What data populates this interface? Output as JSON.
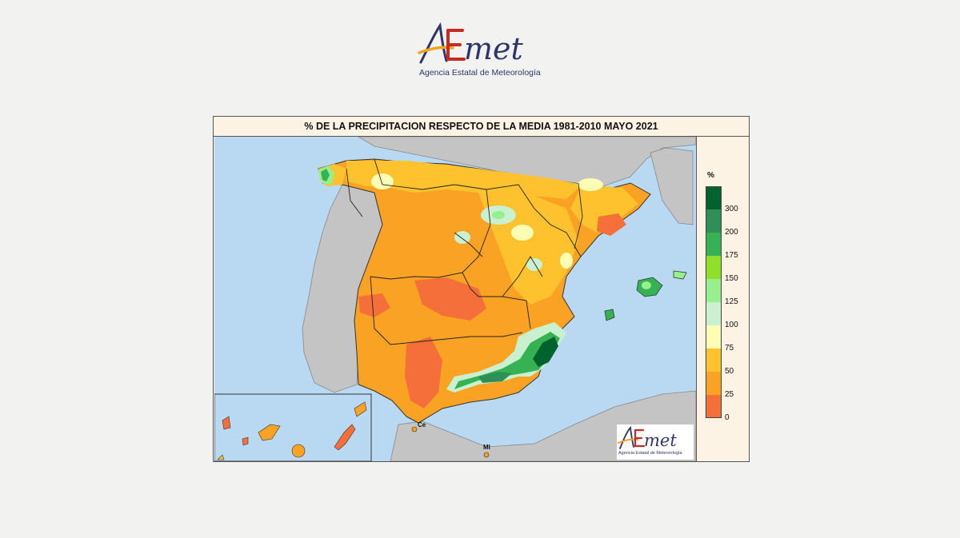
{
  "header": {
    "logo_text": "AEmet",
    "tagline": "Agencia Estatal de Meteorología"
  },
  "map": {
    "title": "% DE LA PRECIPITACION RESPECTO DE LA MEDIA 1981-2010 MAYO 2021",
    "place_labels": {
      "ceuta": "Ce",
      "melilla": "Ml"
    },
    "watermark_logo": "AEmet",
    "watermark_tagline": "Agencia Estatal de Meteorología"
  },
  "legend": {
    "unit": "%",
    "classes": [
      {
        "color": "#00622d",
        "label": "300"
      },
      {
        "color": "#2e8f57",
        "label": "200"
      },
      {
        "color": "#36b255",
        "label": "175"
      },
      {
        "color": "#8fe02a",
        "label": "150"
      },
      {
        "color": "#97ef8e",
        "label": "125"
      },
      {
        "color": "#c9f0cf",
        "label": "100"
      },
      {
        "color": "#fdfdb4",
        "label": "75"
      },
      {
        "color": "#fdc22e",
        "label": "50"
      },
      {
        "color": "#f9a224",
        "label": "25"
      },
      {
        "color": "#f46f3a",
        "label": "0"
      }
    ],
    "top_label_hidden": ""
  },
  "colors": {
    "sea": "#b9d9f2",
    "land_outside": "#c4c4c4",
    "orange_25_50": "#f9a224",
    "red_0_25": "#f46f3a",
    "yellow_50_75": "#fdc22e"
  }
}
